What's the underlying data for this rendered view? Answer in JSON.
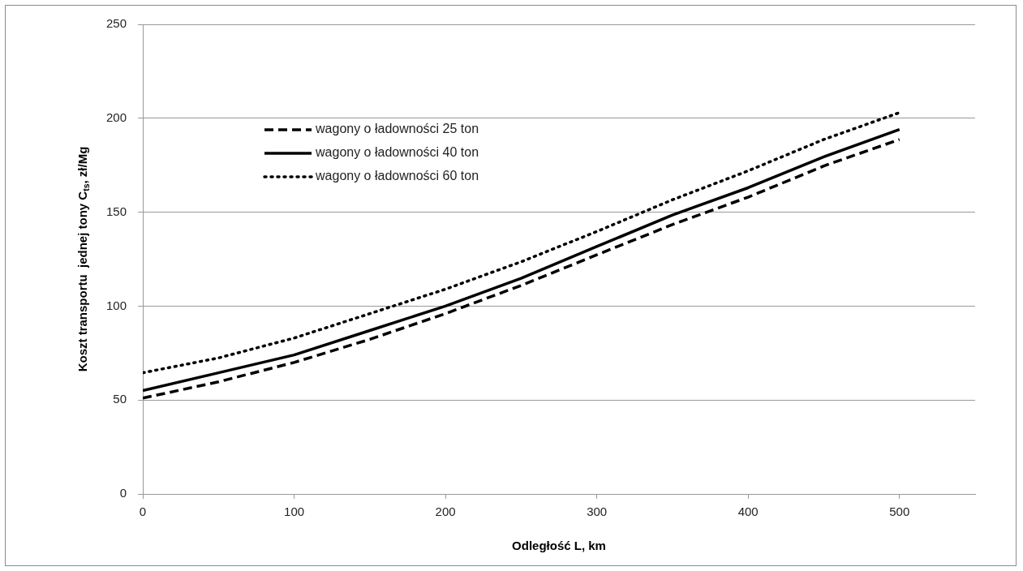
{
  "chart_data": {
    "type": "line",
    "xlabel": "Odległość L, km",
    "ylabel": "Koszt transportu  jednej tony C$_{ts}$, zł/Mg",
    "x": [
      0,
      50,
      100,
      150,
      200,
      250,
      300,
      350,
      400,
      450,
      500
    ],
    "series": [
      {
        "name": "wagony o ładowności 25 ton",
        "color": "#000000",
        "line_style": "dashed",
        "values": [
          51,
          59.7,
          70,
          82.3,
          96,
          111,
          127.3,
          143.4,
          158,
          174.6,
          188.7
        ]
      },
      {
        "name": "wagony o ładowności 40 ton",
        "color": "#000000",
        "line_style": "solid",
        "values": [
          55,
          64.5,
          74,
          87,
          100,
          114.8,
          131.7,
          148.5,
          163,
          179.5,
          194
        ]
      },
      {
        "name": "wagony o ładowności 60 ton",
        "color": "#000000",
        "line_style": "dotted",
        "values": [
          64.5,
          72.4,
          83,
          96,
          109,
          123.6,
          139.7,
          156.6,
          172,
          188.7,
          203
        ]
      }
    ],
    "xlim": [
      0,
      550
    ],
    "xticks": [
      0,
      100,
      200,
      300,
      400,
      500
    ],
    "ylim": [
      0,
      250
    ],
    "yticks": [
      0,
      50,
      100,
      150,
      200,
      250
    ],
    "grid": "y",
    "legend": "top left",
    "marker": "none"
  }
}
